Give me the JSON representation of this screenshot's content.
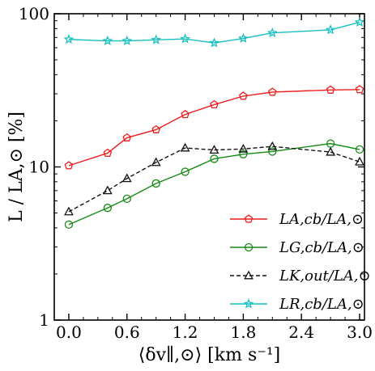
{
  "chart_data": {
    "type": "line",
    "xlabel": "⟨δv∥,⊙⟩ [km s⁻¹]",
    "ylabel": "L / LA,⊙ [%]",
    "xlim": [
      -0.15,
      3.05
    ],
    "ylim": [
      1,
      100
    ],
    "yscale": "log",
    "grid": false,
    "legend_position": "lower-right",
    "x_ticks": [
      0.0,
      0.6,
      1.2,
      1.8,
      2.4,
      3.0
    ],
    "x_tick_labels": [
      "0.0",
      "0.6",
      "1.2",
      "1.8",
      "2.4",
      "3.0"
    ],
    "y_ticks": [
      1,
      10,
      100
    ],
    "y_tick_labels": [
      "1",
      "10",
      "100"
    ],
    "series": [
      {
        "name": "LA,cb/LA,⊙",
        "color": "#ee1c1c",
        "marker": "pentagon",
        "dashed": false,
        "x": [
          0.0,
          0.4,
          0.6,
          0.9,
          1.2,
          1.5,
          1.8,
          2.1,
          2.7,
          3.0
        ],
        "y": [
          10.2,
          12.3,
          15.5,
          17.5,
          22.0,
          25.5,
          29.0,
          30.8,
          31.8,
          32.0
        ]
      },
      {
        "name": "LG,cb/LA,⊙",
        "color": "#168a16",
        "marker": "circle",
        "dashed": false,
        "x": [
          0.0,
          0.4,
          0.6,
          0.9,
          1.2,
          1.5,
          1.8,
          2.1,
          2.7,
          3.0
        ],
        "y": [
          4.2,
          5.4,
          6.2,
          7.8,
          9.3,
          11.3,
          12.1,
          12.6,
          14.2,
          13.0
        ]
      },
      {
        "name": "LK,out/LA,⊙",
        "color": "#111111",
        "marker": "triangle",
        "dashed": true,
        "x": [
          0.0,
          0.4,
          0.6,
          0.9,
          1.2,
          1.5,
          1.8,
          2.1,
          2.7,
          3.0
        ],
        "y": [
          5.1,
          7.0,
          8.4,
          10.7,
          13.3,
          12.9,
          13.1,
          13.6,
          12.5,
          10.8
        ]
      },
      {
        "name": "LR,cb/LA,⊙",
        "color": "#17bfc2",
        "marker": "star",
        "dashed": false,
        "x": [
          0.0,
          0.4,
          0.6,
          0.9,
          1.2,
          1.5,
          1.8,
          2.1,
          2.7,
          3.0
        ],
        "y": [
          68.0,
          66.5,
          66.5,
          67.5,
          68.5,
          64.5,
          69.0,
          75.0,
          78.5,
          88.0
        ]
      }
    ]
  }
}
